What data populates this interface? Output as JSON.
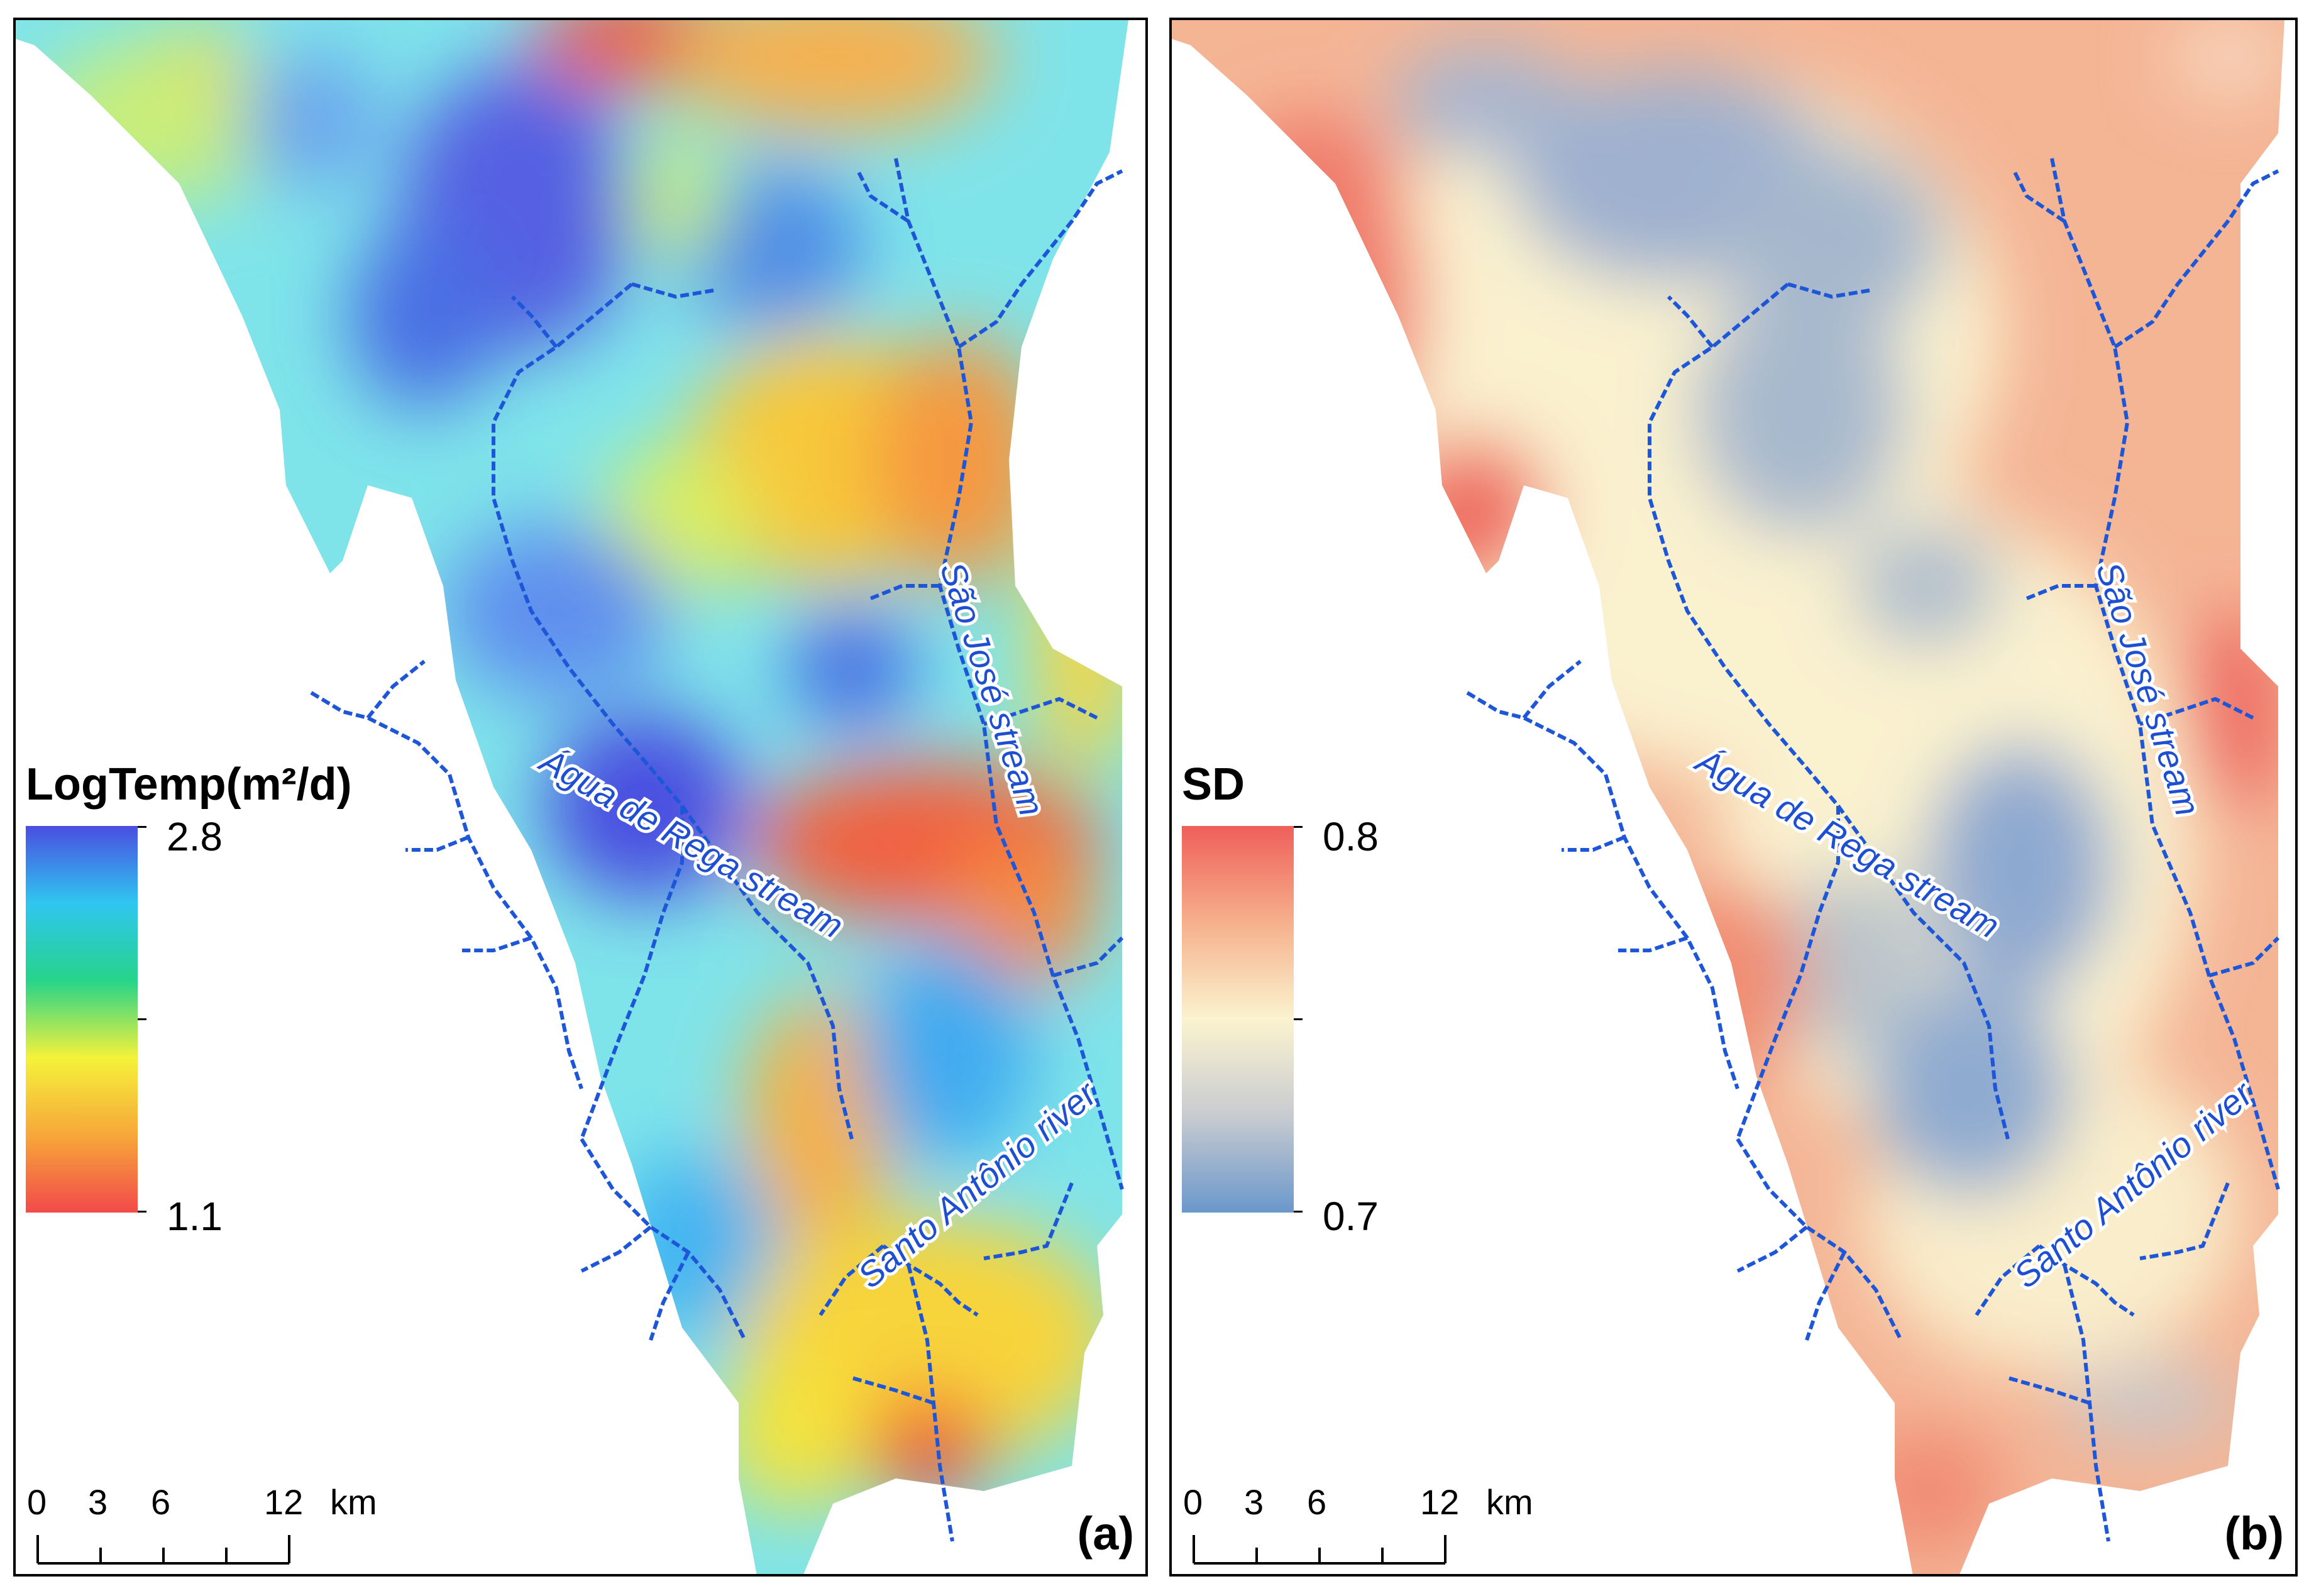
{
  "panel_a": {
    "legend_title": "LogTemp(m²/d)",
    "legend_max": "2.8",
    "legend_min": "1.1",
    "panel_label": "(a)",
    "legend_colors": [
      "#4a4ee0",
      "#2fc6f0",
      "#26d48a",
      "#f5f23a",
      "#f7a73a",
      "#f24a4a"
    ]
  },
  "panel_b": {
    "legend_title": "SD",
    "legend_max": "0.8",
    "legend_min": "0.7",
    "panel_label": "(b)",
    "legend_colors": [
      "#ef5f5a",
      "#f6b08c",
      "#fbf3cf",
      "#c8cbd0",
      "#6a97cb"
    ]
  },
  "scale_bar": {
    "ticks": [
      "0",
      "3",
      "6",
      "12"
    ],
    "unit": "km"
  },
  "river_labels": {
    "agua_de_rega": "Água de Rega stream",
    "sao_jose": "São José stream",
    "santo_antonio": "Santo Antônio river"
  },
  "icons": [
    "map-scale-bar-icon",
    "legend-colorbar-icon",
    "river-network-icon"
  ]
}
